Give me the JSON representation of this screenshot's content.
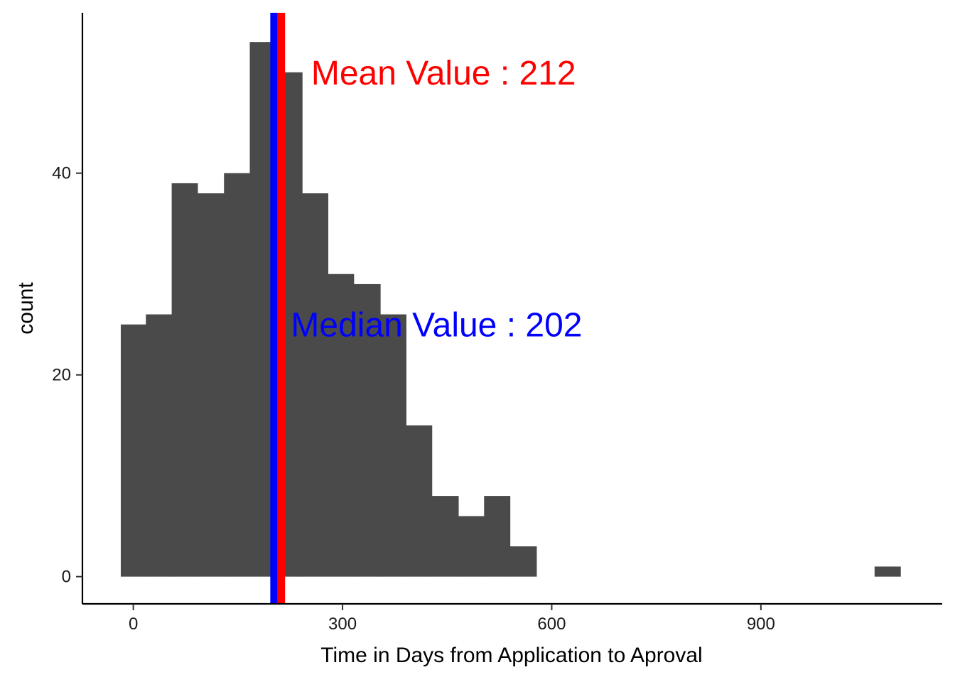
{
  "chart_data": {
    "type": "bar",
    "subtype": "histogram",
    "xlabel": "Time in Days from Application to Aproval",
    "ylabel": "count",
    "xlim": [
      -73,
      1160
    ],
    "ylim": [
      -2.7,
      55.9
    ],
    "x_ticks": [
      0,
      300,
      600,
      900
    ],
    "y_ticks": [
      0,
      20,
      40
    ],
    "bar_color": "#4a4a4a",
    "grid": false,
    "bins": [
      {
        "x_start": -18,
        "x_end": 18,
        "count": 25
      },
      {
        "x_start": 18,
        "x_end": 55,
        "count": 26
      },
      {
        "x_start": 55,
        "x_end": 92,
        "count": 39
      },
      {
        "x_start": 92,
        "x_end": 130,
        "count": 38
      },
      {
        "x_start": 130,
        "x_end": 167,
        "count": 40
      },
      {
        "x_start": 167,
        "x_end": 204,
        "count": 53
      },
      {
        "x_start": 204,
        "x_end": 242,
        "count": 50
      },
      {
        "x_start": 242,
        "x_end": 279,
        "count": 38
      },
      {
        "x_start": 279,
        "x_end": 316,
        "count": 30
      },
      {
        "x_start": 316,
        "x_end": 354,
        "count": 29
      },
      {
        "x_start": 354,
        "x_end": 391,
        "count": 26
      },
      {
        "x_start": 391,
        "x_end": 428,
        "count": 15
      },
      {
        "x_start": 428,
        "x_end": 466,
        "count": 8
      },
      {
        "x_start": 466,
        "x_end": 503,
        "count": 6
      },
      {
        "x_start": 503,
        "x_end": 540,
        "count": 8
      },
      {
        "x_start": 540,
        "x_end": 578,
        "count": 3
      },
      {
        "x_start": 1063,
        "x_end": 1100,
        "count": 1
      }
    ],
    "vlines": [
      {
        "name": "median",
        "x": 202,
        "color": "#0000ff"
      },
      {
        "name": "mean",
        "x": 212,
        "color": "#ff0000"
      }
    ],
    "annotations": [
      {
        "text": "Mean Value : 212",
        "x": 255,
        "y": 50,
        "color": "#ff0000"
      },
      {
        "text": "Median Value : 202",
        "x": 226,
        "y": 25,
        "color": "#0000ff"
      }
    ]
  }
}
